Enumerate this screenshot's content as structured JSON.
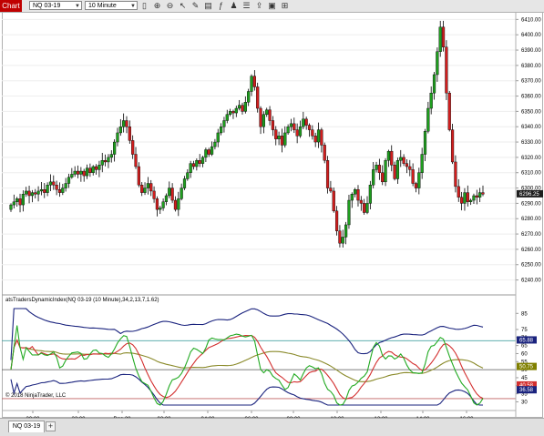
{
  "toolbar": {
    "chart_label": "Chart",
    "instrument": "NQ 03-19",
    "interval": "10 Minute",
    "icons": [
      "search-icon",
      "bar-style-icon",
      "pencil-icon",
      "zoom-icon",
      "cursor-icon",
      "object-icon",
      "properties-icon",
      "strategies-icon",
      "trade-icon",
      "share-icon",
      "flash-icon",
      "grid-icon",
      "attach-icon"
    ]
  },
  "indicator": {
    "label": "atsTradersDynamicIndex(NQ 03-19 (10 Minute),34,2,13,7,1.62)",
    "levels": [
      "85",
      "75",
      "70",
      "65",
      "60",
      "55",
      "50",
      "45",
      "40",
      "35",
      "30"
    ],
    "tags": [
      {
        "text": "65.88",
        "color": "#1a237e"
      },
      {
        "text": "50.75",
        "color": "#808000"
      },
      {
        "text": "40.58",
        "color": "#d32f2f"
      },
      {
        "text": "36.58",
        "color": "#1a237e"
      }
    ],
    "overbought": 68,
    "oversold": 32,
    "middle": 50
  },
  "copyright": "© 2018 NinjaTrader, LLC",
  "price_axis": [
    "6410.00",
    "6400.00",
    "6390.00",
    "6380.00",
    "6370.00",
    "6360.00",
    "6350.00",
    "6340.00",
    "6330.00",
    "6320.00",
    "6310.00",
    "6300.00",
    "6290.00",
    "6280.00",
    "6270.00",
    "6260.00",
    "6250.00",
    "6240.00"
  ],
  "last_price": "6296.25",
  "time_axis": [
    "20:00",
    "22:00",
    "Dec 28",
    "02:00",
    "04:00",
    "06:00",
    "08:00",
    "10:00",
    "12:00",
    "14:00",
    "16:00"
  ],
  "tab": {
    "label": "NQ 03-19",
    "add": "+"
  },
  "chart_data": {
    "type": "candlestick",
    "instrument": "NQ 03-19",
    "interval": "10 Minute",
    "ylim": [
      6235,
      6412
    ],
    "colors": {
      "up": "#1e9e1e",
      "down": "#d21e1e"
    },
    "closes": [
      6289,
      6291,
      6293,
      6289,
      6296,
      6298,
      6295,
      6297,
      6296,
      6298,
      6299,
      6297,
      6302,
      6304,
      6302,
      6299,
      6297,
      6300,
      6303,
      6307,
      6309,
      6311,
      6309,
      6311,
      6308,
      6313,
      6310,
      6314,
      6312,
      6315,
      6318,
      6317,
      6320,
      6322,
      6330,
      6336,
      6340,
      6344,
      6340,
      6331,
      6322,
      6314,
      6302,
      6297,
      6300,
      6303,
      6298,
      6293,
      6286,
      6287,
      6291,
      6295,
      6300,
      6292,
      6286,
      6293,
      6300,
      6306,
      6310,
      6316,
      6314,
      6318,
      6316,
      6320,
      6325,
      6322,
      6327,
      6330,
      6336,
      6340,
      6344,
      6348,
      6350,
      6349,
      6352,
      6354,
      6350,
      6356,
      6363,
      6373,
      6366,
      6352,
      6340,
      6348,
      6351,
      6344,
      6338,
      6332,
      6334,
      6328,
      6336,
      6340,
      6342,
      6338,
      6334,
      6340,
      6345,
      6341,
      6338,
      6334,
      6330,
      6338,
      6328,
      6318,
      6300,
      6298,
      6285,
      6272,
      6264,
      6268,
      6276,
      6292,
      6296,
      6299,
      6292,
      6290,
      6284,
      6290,
      6302,
      6312,
      6315,
      6310,
      6304,
      6318,
      6324,
      6315,
      6306,
      6318,
      6320,
      6316,
      6314,
      6312,
      6303,
      6300,
      6310,
      6322,
      6337,
      6352,
      6362,
      6374,
      6389,
      6405,
      6392,
      6362,
      6338,
      6317,
      6301,
      6294,
      6290,
      6297,
      6291,
      6292,
      6295,
      6294,
      6297,
      6296
    ]
  }
}
